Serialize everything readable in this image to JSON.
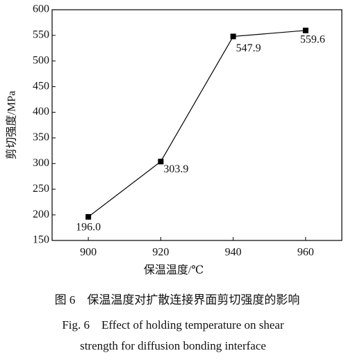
{
  "chart_data": {
    "type": "line",
    "x_label": "保温温度/℃",
    "y_label": "剪切强度/MPa",
    "x": [
      900,
      920,
      940,
      960
    ],
    "values": [
      196,
      303.9,
      547.9,
      559.6
    ],
    "value_labels": [
      "196.0",
      "303.9",
      "547.9",
      "559.6"
    ],
    "color": "#000000",
    "xlim": [
      890,
      970
    ],
    "xticks": [
      900,
      920,
      940,
      960
    ],
    "ylim": [
      150,
      600
    ],
    "yticks": [
      150,
      200,
      250,
      300,
      350,
      400,
      450,
      500,
      550,
      600
    ],
    "grid": false,
    "caption_cn": "图 6　保温温度对扩散连接界面剪切强度的影响",
    "caption_en": [
      "Fig. 6　Effect of holding temperature on shear",
      "strength for diffusion bonding interface"
    ]
  }
}
